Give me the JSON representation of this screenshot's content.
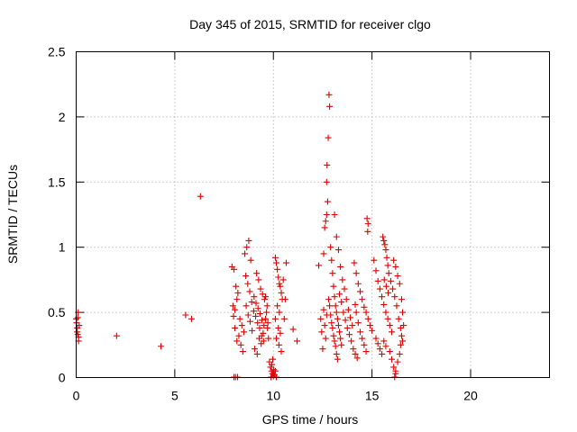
{
  "chart_data": {
    "type": "scatter",
    "title": "Day 345 of 2015, SRMTID for receiver clgo",
    "xlabel": "GPS time / hours",
    "ylabel": "SRMTID / TECUs",
    "xlim": [
      0,
      24
    ],
    "ylim": [
      0,
      2.5
    ],
    "xticks": [
      0,
      5,
      10,
      15,
      20
    ],
    "xtick_labels": [
      "0",
      "5",
      "10",
      "15",
      "20"
    ],
    "yticks": [
      0,
      0.5,
      1,
      1.5,
      2,
      2.5
    ],
    "ytick_labels": [
      "0",
      "0.5",
      "1",
      "1.5",
      "2",
      "2.5"
    ],
    "grid": true,
    "marker": "+",
    "series": [
      {
        "name": "SRMTID",
        "color": "#e00000",
        "points": [
          [
            0.0,
            0.45
          ],
          [
            0.02,
            0.42
          ],
          [
            0.05,
            0.38
          ],
          [
            0.08,
            0.33
          ],
          [
            0.1,
            0.5
          ],
          [
            0.12,
            0.28
          ],
          [
            0.15,
            0.4
          ],
          [
            0.05,
            0.35
          ],
          [
            0.08,
            0.46
          ],
          [
            0.12,
            0.31
          ],
          [
            2.05,
            0.32
          ],
          [
            4.3,
            0.24
          ],
          [
            5.55,
            0.48
          ],
          [
            5.85,
            0.45
          ],
          [
            6.3,
            1.39
          ],
          [
            7.9,
            0.85
          ],
          [
            8.0,
            0.83
          ],
          [
            8.1,
            0.7
          ],
          [
            8.2,
            0.65
          ],
          [
            7.95,
            0.55
          ],
          [
            8.05,
            0.52
          ],
          [
            8.15,
            0.6
          ],
          [
            8.3,
            0.45
          ],
          [
            8.4,
            0.4
          ],
          [
            8.5,
            0.35
          ],
          [
            8.6,
            0.78
          ],
          [
            8.7,
            0.72
          ],
          [
            8.8,
            0.66
          ],
          [
            8.9,
            0.58
          ],
          [
            9.0,
            0.51
          ],
          [
            9.1,
            0.47
          ],
          [
            9.2,
            0.42
          ],
          [
            9.3,
            0.38
          ],
          [
            9.4,
            0.32
          ],
          [
            9.5,
            0.28
          ],
          [
            8.55,
            0.95
          ],
          [
            8.65,
            1.0
          ],
          [
            8.75,
            1.05
          ],
          [
            8.85,
            0.9
          ],
          [
            8.35,
            0.25
          ],
          [
            8.45,
            0.2
          ],
          [
            8.25,
            0.32
          ],
          [
            8.15,
            0.28
          ],
          [
            8.05,
            0.38
          ],
          [
            7.98,
            0.47
          ],
          [
            8.62,
            0.55
          ],
          [
            8.72,
            0.48
          ],
          [
            8.82,
            0.43
          ],
          [
            8.92,
            0.36
          ],
          [
            9.02,
            0.62
          ],
          [
            9.12,
            0.57
          ],
          [
            9.22,
            0.53
          ],
          [
            9.32,
            0.49
          ],
          [
            9.42,
            0.44
          ],
          [
            9.52,
            0.4
          ],
          [
            9.15,
            0.8
          ],
          [
            9.25,
            0.75
          ],
          [
            9.35,
            0.68
          ],
          [
            9.45,
            0.64
          ],
          [
            9.55,
            0.6
          ],
          [
            9.05,
            0.22
          ],
          [
            9.18,
            0.18
          ],
          [
            9.28,
            0.3
          ],
          [
            9.38,
            0.26
          ],
          [
            9.48,
            0.34
          ],
          [
            8.0,
            0.0
          ],
          [
            8.08,
            0.0
          ],
          [
            8.18,
            0.0
          ],
          [
            9.6,
            0.45
          ],
          [
            9.65,
            0.5
          ],
          [
            9.7,
            0.38
          ],
          [
            9.75,
            0.3
          ],
          [
            9.6,
            0.62
          ],
          [
            9.68,
            0.55
          ],
          [
            9.72,
            0.42
          ],
          [
            9.8,
            0.12
          ],
          [
            9.85,
            0.08
          ],
          [
            9.9,
            0.05
          ],
          [
            9.95,
            0.03
          ],
          [
            10.0,
            0.01
          ],
          [
            10.05,
            0.02
          ],
          [
            9.88,
            0.0
          ],
          [
            9.92,
            0.1
          ],
          [
            10.02,
            0.06
          ],
          [
            9.97,
            0.14
          ],
          [
            10.1,
            0.92
          ],
          [
            10.15,
            0.88
          ],
          [
            10.2,
            0.83
          ],
          [
            10.25,
            0.77
          ],
          [
            10.3,
            0.72
          ],
          [
            10.35,
            0.7
          ],
          [
            10.4,
            0.65
          ],
          [
            10.45,
            0.6
          ],
          [
            10.2,
            0.55
          ],
          [
            10.3,
            0.5
          ],
          [
            10.1,
            0.45
          ],
          [
            10.25,
            0.38
          ],
          [
            10.35,
            0.34
          ],
          [
            10.15,
            0.3
          ],
          [
            10.28,
            0.25
          ],
          [
            10.4,
            0.2
          ],
          [
            10.5,
            0.75
          ],
          [
            10.6,
            0.6
          ],
          [
            10.65,
            0.88
          ],
          [
            10.55,
            0.45
          ],
          [
            10.1,
            0.05
          ],
          [
            10.15,
            0.0
          ],
          [
            11.0,
            0.37
          ],
          [
            11.2,
            0.28
          ],
          [
            12.3,
            0.86
          ],
          [
            12.4,
            0.45
          ],
          [
            12.45,
            0.35
          ],
          [
            12.5,
            0.22
          ],
          [
            12.55,
            0.52
          ],
          [
            12.6,
            0.4
          ],
          [
            12.65,
            0.3
          ],
          [
            12.7,
            0.48
          ],
          [
            12.55,
            0.95
          ],
          [
            12.6,
            1.15
          ],
          [
            12.65,
            1.2
          ],
          [
            12.7,
            1.25
          ],
          [
            12.75,
            1.35
          ],
          [
            12.7,
            1.5
          ],
          [
            12.72,
            1.63
          ],
          [
            12.78,
            1.84
          ],
          [
            12.85,
            2.08
          ],
          [
            12.82,
            2.17
          ],
          [
            12.9,
            1.0
          ],
          [
            12.95,
            0.9
          ],
          [
            13.0,
            0.8
          ],
          [
            13.05,
            0.7
          ],
          [
            13.1,
            0.62
          ],
          [
            13.15,
            0.55
          ],
          [
            13.2,
            0.5
          ],
          [
            13.25,
            0.45
          ],
          [
            13.3,
            0.4
          ],
          [
            13.35,
            0.35
          ],
          [
            13.4,
            0.3
          ],
          [
            13.45,
            0.25
          ],
          [
            12.8,
            0.6
          ],
          [
            12.85,
            0.55
          ],
          [
            12.9,
            0.48
          ],
          [
            12.95,
            0.42
          ],
          [
            13.0,
            0.38
          ],
          [
            13.05,
            0.32
          ],
          [
            13.1,
            0.28
          ],
          [
            13.15,
            0.24
          ],
          [
            13.2,
            0.18
          ],
          [
            13.25,
            0.14
          ],
          [
            13.1,
            1.25
          ],
          [
            13.2,
            1.08
          ],
          [
            13.3,
            0.98
          ],
          [
            13.4,
            0.85
          ],
          [
            13.5,
            0.75
          ],
          [
            13.6,
            0.68
          ],
          [
            13.7,
            0.6
          ],
          [
            13.8,
            0.52
          ],
          [
            13.9,
            0.46
          ],
          [
            14.0,
            0.4
          ],
          [
            13.55,
            0.5
          ],
          [
            13.65,
            0.44
          ],
          [
            13.75,
            0.38
          ],
          [
            13.85,
            0.33
          ],
          [
            13.95,
            0.28
          ],
          [
            14.05,
            0.22
          ],
          [
            14.15,
            0.18
          ],
          [
            14.25,
            0.15
          ],
          [
            13.45,
            0.58
          ],
          [
            13.35,
            0.64
          ],
          [
            14.1,
            0.88
          ],
          [
            14.2,
            0.8
          ],
          [
            14.3,
            0.72
          ],
          [
            14.4,
            0.66
          ],
          [
            14.5,
            0.6
          ],
          [
            14.6,
            0.54
          ],
          [
            14.7,
            0.5
          ],
          [
            14.8,
            0.45
          ],
          [
            14.9,
            0.4
          ],
          [
            15.0,
            0.36
          ],
          [
            14.75,
            1.22
          ],
          [
            14.8,
            1.18
          ],
          [
            14.78,
            1.12
          ],
          [
            14.6,
            0.25
          ],
          [
            14.7,
            0.2
          ],
          [
            14.5,
            0.3
          ],
          [
            14.4,
            0.35
          ],
          [
            14.3,
            0.42
          ],
          [
            14.2,
            0.5
          ],
          [
            14.15,
            0.56
          ],
          [
            15.1,
            0.9
          ],
          [
            15.2,
            0.82
          ],
          [
            15.3,
            0.74
          ],
          [
            15.4,
            0.68
          ],
          [
            15.5,
            0.62
          ],
          [
            15.6,
            0.56
          ],
          [
            15.7,
            0.5
          ],
          [
            15.8,
            0.45
          ],
          [
            15.9,
            0.4
          ],
          [
            16.0,
            0.35
          ],
          [
            15.55,
            1.08
          ],
          [
            15.6,
            1.05
          ],
          [
            15.65,
            1.02
          ],
          [
            15.7,
            0.98
          ],
          [
            15.75,
            0.92
          ],
          [
            15.8,
            0.86
          ],
          [
            15.85,
            0.8
          ],
          [
            15.62,
            0.75
          ],
          [
            15.72,
            0.7
          ],
          [
            15.82,
            0.65
          ],
          [
            15.2,
            0.3
          ],
          [
            15.3,
            0.26
          ],
          [
            15.4,
            0.22
          ],
          [
            15.5,
            0.18
          ],
          [
            15.6,
            0.28
          ],
          [
            15.7,
            0.24
          ],
          [
            15.9,
            0.2
          ],
          [
            16.0,
            0.14
          ],
          [
            16.1,
            0.08
          ],
          [
            16.2,
            0.03
          ],
          [
            16.1,
            0.9
          ],
          [
            16.2,
            0.85
          ],
          [
            16.3,
            0.78
          ],
          [
            16.4,
            0.72
          ],
          [
            16.5,
            0.6
          ],
          [
            16.55,
            0.5
          ],
          [
            16.6,
            0.4
          ],
          [
            16.5,
            0.32
          ],
          [
            16.45,
            0.25
          ],
          [
            16.4,
            0.18
          ],
          [
            16.3,
            0.12
          ],
          [
            16.2,
            0.05
          ],
          [
            16.15,
            0.0
          ],
          [
            16.35,
            0.45
          ],
          [
            16.25,
            0.55
          ],
          [
            16.15,
            0.62
          ],
          [
            16.05,
            0.68
          ],
          [
            15.95,
            0.74
          ],
          [
            16.45,
            0.38
          ],
          [
            16.55,
            0.28
          ]
        ]
      }
    ]
  }
}
